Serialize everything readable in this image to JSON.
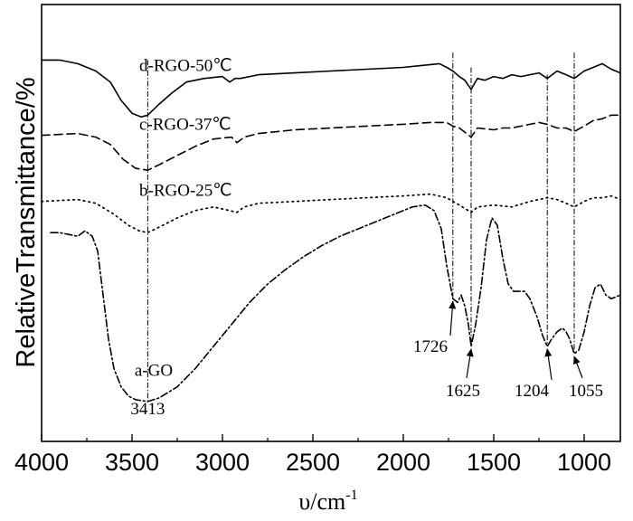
{
  "chart_data": {
    "type": "line",
    "title": "",
    "ylabel": "RelativeTransmittance/%",
    "xlabel": {
      "main": "υ/cm",
      "sup": "-1"
    },
    "xlim": [
      4000,
      800
    ],
    "x_reversed": true,
    "x_ticks": [
      {
        "value": 4000,
        "label": "4000"
      },
      {
        "value": 3500,
        "label": "3500"
      },
      {
        "value": 3000,
        "label": "3000"
      },
      {
        "value": 2500,
        "label": "2500"
      },
      {
        "value": 2000,
        "label": "2000"
      },
      {
        "value": 1500,
        "label": "1500"
      },
      {
        "value": 1000,
        "label": "1000"
      }
    ],
    "y_ticks_labeled": false,
    "grid": false,
    "ylim": [
      0,
      100
    ],
    "series": [
      {
        "name": "d-RGO-50℃",
        "style": "solid",
        "points": [
          [
            4000,
            94
          ],
          [
            3900,
            94
          ],
          [
            3800,
            93
          ],
          [
            3700,
            91
          ],
          [
            3620,
            88
          ],
          [
            3560,
            83
          ],
          [
            3500,
            79.5
          ],
          [
            3450,
            78.5
          ],
          [
            3413,
            79
          ],
          [
            3350,
            82
          ],
          [
            3280,
            85
          ],
          [
            3200,
            88
          ],
          [
            3100,
            89
          ],
          [
            3000,
            89.5
          ],
          [
            2960,
            88
          ],
          [
            2930,
            89
          ],
          [
            2900,
            89
          ],
          [
            2800,
            90
          ],
          [
            2600,
            90.5
          ],
          [
            2400,
            91
          ],
          [
            2200,
            91.5
          ],
          [
            2000,
            92
          ],
          [
            1900,
            92.5
          ],
          [
            1800,
            93
          ],
          [
            1760,
            92
          ],
          [
            1726,
            91
          ],
          [
            1690,
            89.5
          ],
          [
            1660,
            88.5
          ],
          [
            1625,
            86
          ],
          [
            1590,
            89
          ],
          [
            1550,
            88.5
          ],
          [
            1500,
            89.5
          ],
          [
            1450,
            89
          ],
          [
            1400,
            90
          ],
          [
            1350,
            89.5
          ],
          [
            1300,
            90
          ],
          [
            1250,
            90.5
          ],
          [
            1204,
            89
          ],
          [
            1150,
            91
          ],
          [
            1100,
            90
          ],
          [
            1055,
            89
          ],
          [
            1000,
            91
          ],
          [
            950,
            92
          ],
          [
            900,
            93
          ],
          [
            850,
            91.5
          ],
          [
            800,
            90.5
          ]
        ]
      },
      {
        "name": "c-RGO-37℃",
        "style": "dashed",
        "points": [
          [
            4000,
            73.5
          ],
          [
            3800,
            74
          ],
          [
            3700,
            73
          ],
          [
            3620,
            71
          ],
          [
            3550,
            67
          ],
          [
            3480,
            64.5
          ],
          [
            3413,
            64
          ],
          [
            3350,
            65.5
          ],
          [
            3250,
            68
          ],
          [
            3150,
            70.5
          ],
          [
            3050,
            72.5
          ],
          [
            2950,
            73
          ],
          [
            2920,
            71.5
          ],
          [
            2880,
            73
          ],
          [
            2800,
            74
          ],
          [
            2600,
            75
          ],
          [
            2400,
            75.5
          ],
          [
            2200,
            76
          ],
          [
            2000,
            76.5
          ],
          [
            1850,
            77
          ],
          [
            1760,
            77
          ],
          [
            1726,
            76
          ],
          [
            1690,
            75.5
          ],
          [
            1625,
            73
          ],
          [
            1590,
            75.5
          ],
          [
            1500,
            75
          ],
          [
            1450,
            75.5
          ],
          [
            1400,
            75.5
          ],
          [
            1300,
            76.5
          ],
          [
            1250,
            77
          ],
          [
            1204,
            76.5
          ],
          [
            1150,
            75.5
          ],
          [
            1100,
            75.5
          ],
          [
            1055,
            74.5
          ],
          [
            1000,
            76
          ],
          [
            950,
            77.5
          ],
          [
            900,
            78
          ],
          [
            850,
            79
          ],
          [
            800,
            79
          ]
        ]
      },
      {
        "name": "b-RGO-25℃",
        "style": "dotted",
        "points": [
          [
            4000,
            55.5
          ],
          [
            3800,
            56
          ],
          [
            3700,
            55
          ],
          [
            3600,
            52
          ],
          [
            3520,
            49
          ],
          [
            3460,
            47.5
          ],
          [
            3413,
            47
          ],
          [
            3350,
            48.5
          ],
          [
            3250,
            51
          ],
          [
            3150,
            53
          ],
          [
            3050,
            54
          ],
          [
            2960,
            53
          ],
          [
            2920,
            52.5
          ],
          [
            2880,
            54
          ],
          [
            2800,
            55
          ],
          [
            2600,
            55.5
          ],
          [
            2400,
            56
          ],
          [
            2200,
            56.5
          ],
          [
            2000,
            57
          ],
          [
            1850,
            57.5
          ],
          [
            1760,
            56.5
          ],
          [
            1726,
            55.5
          ],
          [
            1690,
            54.5
          ],
          [
            1625,
            52.5
          ],
          [
            1590,
            54
          ],
          [
            1500,
            54.5
          ],
          [
            1400,
            54
          ],
          [
            1300,
            55.5
          ],
          [
            1204,
            56.5
          ],
          [
            1150,
            56
          ],
          [
            1100,
            55
          ],
          [
            1055,
            54
          ],
          [
            1000,
            55.5
          ],
          [
            950,
            56.5
          ],
          [
            900,
            56.5
          ],
          [
            850,
            57
          ],
          [
            800,
            56
          ]
        ]
      },
      {
        "name": "a-GO",
        "style": "dash-dot",
        "points": [
          [
            3950,
            47
          ],
          [
            3900,
            47
          ],
          [
            3850,
            46.5
          ],
          [
            3800,
            46
          ],
          [
            3760,
            47.5
          ],
          [
            3720,
            46
          ],
          [
            3690,
            42
          ],
          [
            3660,
            30
          ],
          [
            3630,
            18
          ],
          [
            3600,
            10
          ],
          [
            3560,
            5
          ],
          [
            3520,
            2.5
          ],
          [
            3480,
            1.5
          ],
          [
            3413,
            1
          ],
          [
            3350,
            2
          ],
          [
            3250,
            5
          ],
          [
            3150,
            10
          ],
          [
            3050,
            16
          ],
          [
            2950,
            22
          ],
          [
            2850,
            28
          ],
          [
            2750,
            33
          ],
          [
            2650,
            37
          ],
          [
            2550,
            40.5
          ],
          [
            2450,
            43.5
          ],
          [
            2350,
            46
          ],
          [
            2250,
            48
          ],
          [
            2150,
            50
          ],
          [
            2050,
            52
          ],
          [
            1950,
            54
          ],
          [
            1880,
            54.5
          ],
          [
            1830,
            53
          ],
          [
            1790,
            48
          ],
          [
            1760,
            38
          ],
          [
            1726,
            29
          ],
          [
            1700,
            28
          ],
          [
            1680,
            30
          ],
          [
            1660,
            27
          ],
          [
            1640,
            22
          ],
          [
            1625,
            16
          ],
          [
            1600,
            22
          ],
          [
            1570,
            32
          ],
          [
            1540,
            45
          ],
          [
            1510,
            51
          ],
          [
            1480,
            49
          ],
          [
            1450,
            40
          ],
          [
            1420,
            33
          ],
          [
            1390,
            31
          ],
          [
            1360,
            31
          ],
          [
            1330,
            31
          ],
          [
            1300,
            29
          ],
          [
            1260,
            24
          ],
          [
            1230,
            19
          ],
          [
            1204,
            16
          ],
          [
            1180,
            18
          ],
          [
            1150,
            20
          ],
          [
            1120,
            21
          ],
          [
            1100,
            20
          ],
          [
            1080,
            18
          ],
          [
            1055,
            14
          ],
          [
            1030,
            15
          ],
          [
            1000,
            20
          ],
          [
            970,
            27
          ],
          [
            940,
            32
          ],
          [
            910,
            33
          ],
          [
            880,
            30
          ],
          [
            850,
            29
          ],
          [
            800,
            30
          ]
        ]
      }
    ],
    "reference_lines": [
      {
        "x": 3413,
        "y_range": [
          1,
          94
        ]
      },
      {
        "x": 1726,
        "y_range": [
          29,
          96
        ]
      },
      {
        "x": 1625,
        "y_range": [
          16,
          92
        ]
      },
      {
        "x": 1204,
        "y_range": [
          16,
          90
        ]
      },
      {
        "x": 1055,
        "y_range": [
          14,
          96
        ]
      }
    ],
    "annotations": [
      {
        "text": "d-RGO-50℃",
        "x": 3460,
        "y": 91
      },
      {
        "text": "c-RGO-37℃",
        "x": 3460,
        "y": 75
      },
      {
        "text": "b-RGO-25℃",
        "x": 3460,
        "y": 57
      },
      {
        "text": "a-GO",
        "x": 3380,
        "y": 8
      },
      {
        "text": "3413",
        "x": 3413,
        "y": -2.5
      },
      {
        "text": "1726",
        "x": 1850,
        "y": 14.5,
        "arrow_to": [
          1726,
          29
        ]
      },
      {
        "text": "1625",
        "x": 1670,
        "y": 2.5,
        "arrow_to": [
          1625,
          16
        ]
      },
      {
        "text": "1204",
        "x": 1290,
        "y": 2.5,
        "arrow_to": [
          1204,
          16
        ]
      },
      {
        "text": "1055",
        "x": 990,
        "y": 2.5,
        "arrow_to": [
          1055,
          14
        ]
      }
    ]
  }
}
